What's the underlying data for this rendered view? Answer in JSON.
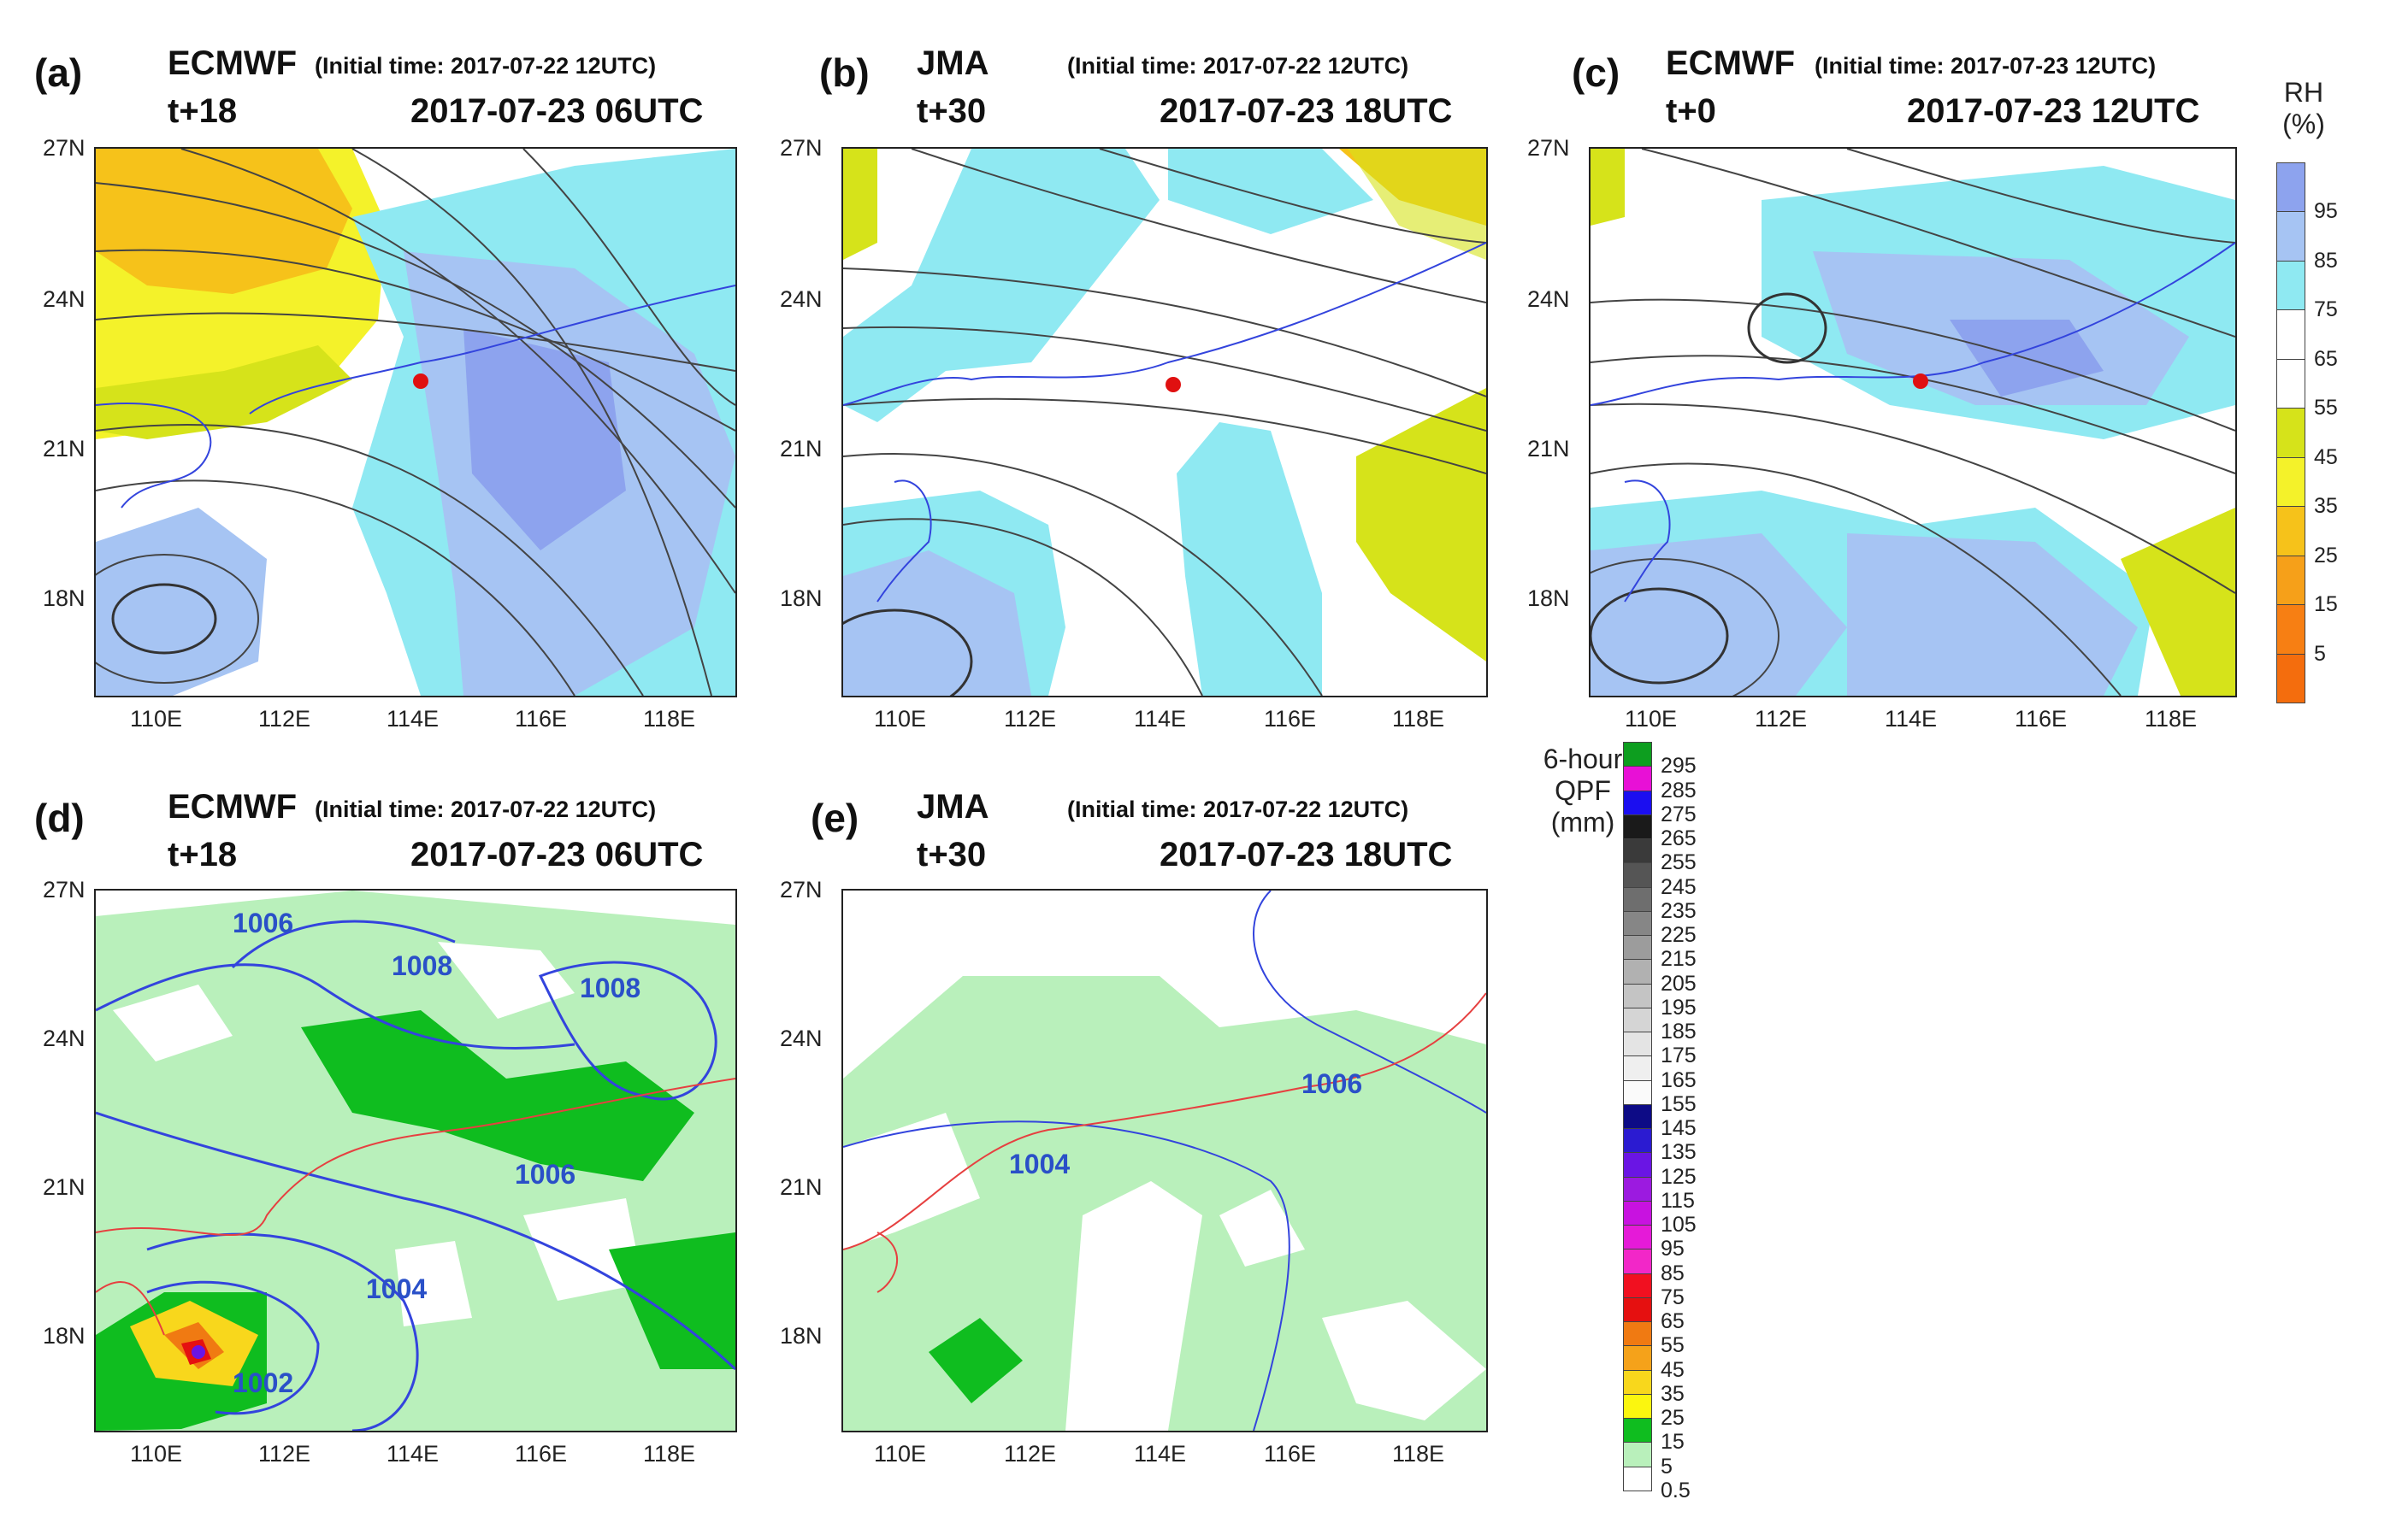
{
  "panels": {
    "a": {
      "label": "(a)",
      "model": "ECMWF",
      "init": "(Initial time: 2017-07-22 12UTC)",
      "lead": "t+18",
      "valid": "2017-07-23 06UTC"
    },
    "b": {
      "label": "(b)",
      "model": "JMA",
      "init": "(Initial time: 2017-07-22 12UTC)",
      "lead": "t+30",
      "valid": "2017-07-23 18UTC"
    },
    "c": {
      "label": "(c)",
      "model": "ECMWF",
      "init": "(Initial time: 2017-07-23 12UTC)",
      "lead": "t+0",
      "valid": "2017-07-23 12UTC"
    },
    "d": {
      "label": "(d)",
      "model": "ECMWF",
      "init": "(Initial time: 2017-07-22 12UTC)",
      "lead": "t+18",
      "valid": "2017-07-23 06UTC"
    },
    "e": {
      "label": "(e)",
      "model": "JMA",
      "init": "(Initial time: 2017-07-22 12UTC)",
      "lead": "t+30",
      "valid": "2017-07-23 18UTC"
    }
  },
  "axes": {
    "lat": [
      "27N",
      "24N",
      "21N",
      "18N"
    ],
    "lon": [
      "110E",
      "112E",
      "114E",
      "116E",
      "118E"
    ]
  },
  "isobars_d": [
    "1006",
    "1008",
    "1008",
    "1006",
    "1004",
    "1002"
  ],
  "isobars_e": [
    "1004",
    "1006"
  ],
  "rh_bar": {
    "title_line1": "RH",
    "title_line2": "(%)",
    "ticks": [
      "95",
      "85",
      "75",
      "65",
      "55",
      "45",
      "35",
      "25",
      "15",
      "5"
    ],
    "colors": [
      "#8da3ee",
      "#a6c4f3",
      "#8fe9f2",
      "#ffffff",
      "#ffffff",
      "#d6e31a",
      "#f4f22a",
      "#f6c21a",
      "#f6a019",
      "#f77f13",
      "#f46d0d"
    ]
  },
  "qpf_bar": {
    "title_line1": "6-hour",
    "title_line2": "QPF",
    "title_line3": "(mm)",
    "ticks": [
      "295",
      "285",
      "275",
      "265",
      "255",
      "245",
      "235",
      "225",
      "215",
      "205",
      "195",
      "185",
      "175",
      "165",
      "155",
      "145",
      "135",
      "125",
      "115",
      "105",
      "95",
      "85",
      "75",
      "65",
      "55",
      "45",
      "35",
      "25",
      "15",
      "5",
      "0.5"
    ],
    "colors": [
      "#0d9e1f",
      "#e810d6",
      "#1b0ef0",
      "#1a1a1a",
      "#3a3a3a",
      "#555555",
      "#6e6e6e",
      "#868686",
      "#9c9c9c",
      "#b1b1b1",
      "#c4c4c4",
      "#d5d5d5",
      "#e4e4e4",
      "#efefef",
      "#fafafa",
      "#0d0b86",
      "#2b1bd1",
      "#6a15e4",
      "#9c1ae0",
      "#c812e0",
      "#e51ad8",
      "#f227c8",
      "#f11020",
      "#e51010",
      "#f07a12",
      "#f5a21a",
      "#f8d71c",
      "#fbf60f",
      "#0fbd1f",
      "#b9f0bb",
      "#ffffff"
    ]
  }
}
